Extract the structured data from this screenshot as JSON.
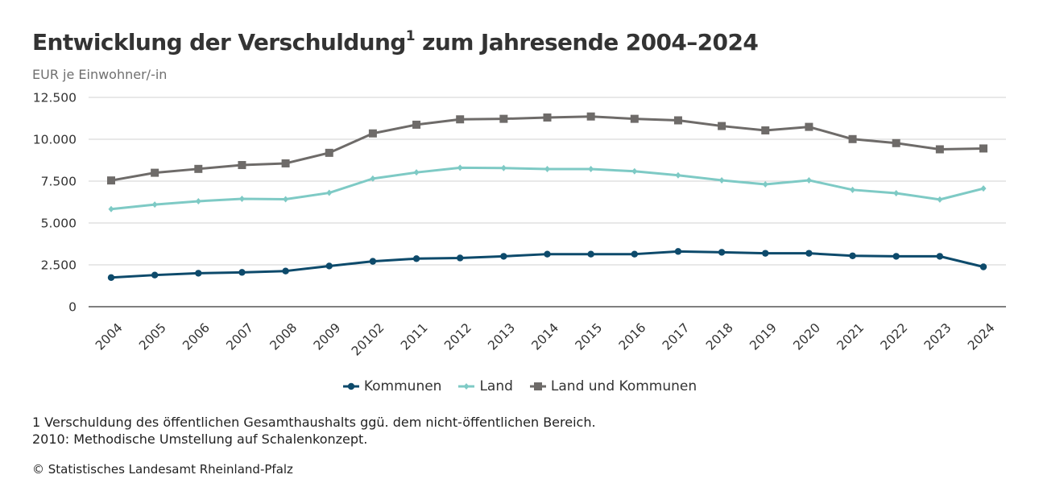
{
  "header": {
    "title": "Entwicklung der Verschuldung",
    "title_sup": "1",
    "title_suffix": " zum Jahresende 2004–2024",
    "subtitle": "EUR je Einwohner/-in"
  },
  "footnotes": {
    "line1": "1 Verschuldung des öffentlichen Gesamthaushalts ggü. dem nicht-öffentlichen Bereich.",
    "line2": "2010: Methodische Umstellung auf Schalenkonzept."
  },
  "source": "© Statistisches Landesamt Rheinland-Pfalz",
  "chart_data": {
    "type": "line",
    "title": "Entwicklung der Verschuldung¹ zum Jahresende 2004–2024",
    "subtitle": "EUR je Einwohner/-in",
    "xlabel": "",
    "ylabel": "EUR je Einwohner/-in",
    "ylim": [
      0,
      12500
    ],
    "yticks": [
      0,
      2500,
      5000,
      7500,
      10000,
      12500
    ],
    "ytick_labels": [
      "0",
      "2.500",
      "5.000",
      "7.500",
      "10.000",
      "12.500"
    ],
    "grid": true,
    "legend_position": "bottom-center",
    "categories": [
      "2004",
      "2005",
      "2006",
      "2007",
      "2008",
      "2009",
      "2010²",
      "2011",
      "2012",
      "2013",
      "2014",
      "2015",
      "2016",
      "2017",
      "2018",
      "2019",
      "2020",
      "2021",
      "2022",
      "2023",
      "2024"
    ],
    "category_labels": [
      "2004",
      "2005",
      "2006",
      "2007",
      "2008",
      "2009",
      "20102",
      "2011",
      "2012",
      "2013",
      "2014",
      "2015",
      "2016",
      "2017",
      "2018",
      "2019",
      "2020",
      "2021",
      "2022",
      "2023",
      "2024"
    ],
    "series": [
      {
        "name": "Kommunen",
        "color": "#0d4a6b",
        "marker": "circle",
        "values": [
          1740,
          1890,
          2000,
          2050,
          2130,
          2430,
          2710,
          2870,
          2910,
          3010,
          3140,
          3140,
          3140,
          3300,
          3250,
          3190,
          3190,
          3040,
          3010,
          3010,
          2380
        ]
      },
      {
        "name": "Land",
        "color": "#7ecac5",
        "marker": "diamond",
        "values": [
          5830,
          6100,
          6300,
          6440,
          6420,
          6800,
          7650,
          8020,
          8300,
          8280,
          8220,
          8220,
          8090,
          7850,
          7550,
          7310,
          7550,
          6980,
          6780,
          6400,
          7060
        ]
      },
      {
        "name": "Land und Kommunen",
        "color": "#6e6b69",
        "marker": "square",
        "values": [
          7540,
          8000,
          8230,
          8460,
          8560,
          9190,
          10350,
          10870,
          11190,
          11220,
          11300,
          11360,
          11220,
          11130,
          10790,
          10530,
          10740,
          10010,
          9770,
          9400,
          9450
        ]
      }
    ]
  },
  "colors": {
    "gridline": "#d0d0d0",
    "axis": "#333333"
  }
}
